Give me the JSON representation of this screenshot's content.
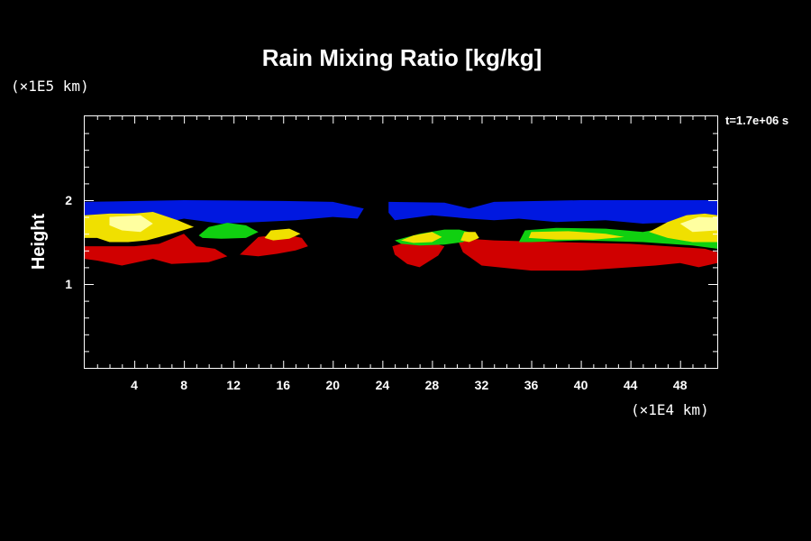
{
  "chart_data": {
    "type": "heatmap",
    "title": "Rain Mixing Ratio [kg/kg]",
    "ylabel": "Height",
    "x_unit": "(×1E4 km)",
    "y_unit": "(×1E5 km)",
    "time_label": "t=1.7e+06 s",
    "xlim": [
      0,
      51
    ],
    "ylim": [
      0,
      3
    ],
    "x_ticks": [
      4,
      8,
      12,
      16,
      20,
      24,
      28,
      32,
      36,
      40,
      44,
      48
    ],
    "y_ticks": [
      1,
      2
    ],
    "colors": {
      "blue": "#0018e0",
      "green": "#10d010",
      "yellow": "#f0e000",
      "light_yellow": "#ffffa0",
      "red": "#d00000",
      "dark_red": "#8a0000"
    },
    "regions": [
      {
        "name": "blue-band-left",
        "color": "blue",
        "points": [
          [
            0,
            1.98
          ],
          [
            8,
            2.0
          ],
          [
            16,
            1.99
          ],
          [
            20,
            1.98
          ],
          [
            22.5,
            1.9
          ],
          [
            22,
            1.78
          ],
          [
            20,
            1.8
          ],
          [
            17,
            1.76
          ],
          [
            14,
            1.74
          ],
          [
            11,
            1.72
          ],
          [
            8,
            1.78
          ],
          [
            6,
            1.72
          ],
          [
            3,
            1.78
          ],
          [
            0,
            1.76
          ]
        ]
      },
      {
        "name": "blue-band-right",
        "color": "blue",
        "points": [
          [
            24.5,
            1.98
          ],
          [
            29,
            1.97
          ],
          [
            31,
            1.9
          ],
          [
            33,
            1.98
          ],
          [
            40,
            2.0
          ],
          [
            51,
            2.0
          ],
          [
            51,
            1.65
          ],
          [
            48,
            1.74
          ],
          [
            45,
            1.72
          ],
          [
            42,
            1.76
          ],
          [
            38,
            1.74
          ],
          [
            35,
            1.78
          ],
          [
            33,
            1.76
          ],
          [
            31,
            1.78
          ],
          [
            28,
            1.82
          ],
          [
            25,
            1.76
          ],
          [
            24.5,
            1.85
          ]
        ]
      },
      {
        "name": "red-left",
        "color": "red",
        "points": [
          [
            0,
            1.45
          ],
          [
            4,
            1.45
          ],
          [
            6,
            1.48
          ],
          [
            8,
            1.6
          ],
          [
            9,
            1.45
          ],
          [
            10.5,
            1.42
          ],
          [
            11.5,
            1.33
          ],
          [
            10,
            1.26
          ],
          [
            7,
            1.24
          ],
          [
            5.5,
            1.3
          ],
          [
            3,
            1.22
          ],
          [
            1,
            1.28
          ],
          [
            0,
            1.3
          ]
        ]
      },
      {
        "name": "red-left-blob",
        "color": "red",
        "points": [
          [
            12.5,
            1.35
          ],
          [
            14,
            1.56
          ],
          [
            16,
            1.6
          ],
          [
            17.5,
            1.55
          ],
          [
            18,
            1.45
          ],
          [
            17,
            1.4
          ],
          [
            15.5,
            1.36
          ],
          [
            14,
            1.33
          ]
        ]
      },
      {
        "name": "red-center-left",
        "color": "red",
        "points": [
          [
            24.8,
            1.45
          ],
          [
            26,
            1.5
          ],
          [
            28,
            1.49
          ],
          [
            29,
            1.45
          ],
          [
            28.5,
            1.34
          ],
          [
            27,
            1.2
          ],
          [
            26,
            1.24
          ],
          [
            25,
            1.35
          ]
        ]
      },
      {
        "name": "red-right",
        "color": "red",
        "points": [
          [
            30,
            1.55
          ],
          [
            33,
            1.52
          ],
          [
            38,
            1.5
          ],
          [
            44,
            1.48
          ],
          [
            47,
            1.45
          ],
          [
            50,
            1.42
          ],
          [
            51,
            1.38
          ],
          [
            51,
            1.25
          ],
          [
            49.5,
            1.2
          ],
          [
            48,
            1.25
          ],
          [
            46,
            1.22
          ],
          [
            44,
            1.2
          ],
          [
            40,
            1.16
          ],
          [
            36,
            1.16
          ],
          [
            32,
            1.22
          ],
          [
            30.5,
            1.38
          ]
        ]
      },
      {
        "name": "green-left",
        "color": "green",
        "points": [
          [
            9.2,
            1.58
          ],
          [
            10,
            1.68
          ],
          [
            11.5,
            1.73
          ],
          [
            13,
            1.7
          ],
          [
            14,
            1.62
          ],
          [
            13,
            1.55
          ],
          [
            11,
            1.54
          ],
          [
            9.5,
            1.55
          ]
        ]
      },
      {
        "name": "green-center",
        "color": "green",
        "points": [
          [
            25,
            1.52
          ],
          [
            27,
            1.6
          ],
          [
            29,
            1.65
          ],
          [
            30.2,
            1.65
          ],
          [
            31.5,
            1.6
          ],
          [
            30.5,
            1.5
          ],
          [
            29,
            1.47
          ],
          [
            27,
            1.46
          ],
          [
            25.5,
            1.48
          ]
        ]
      },
      {
        "name": "green-right",
        "color": "green",
        "points": [
          [
            35,
            1.5
          ],
          [
            35.5,
            1.64
          ],
          [
            38,
            1.67
          ],
          [
            42,
            1.66
          ],
          [
            45,
            1.62
          ],
          [
            48,
            1.7
          ],
          [
            51,
            1.72
          ],
          [
            51,
            1.42
          ],
          [
            49,
            1.46
          ],
          [
            45,
            1.5
          ],
          [
            40,
            1.52
          ],
          [
            36,
            1.5
          ]
        ]
      },
      {
        "name": "yellow-left",
        "color": "yellow",
        "points": [
          [
            0,
            1.82
          ],
          [
            2,
            1.84
          ],
          [
            4,
            1.84
          ],
          [
            5.5,
            1.86
          ],
          [
            7.5,
            1.76
          ],
          [
            8.8,
            1.68
          ],
          [
            7,
            1.6
          ],
          [
            5,
            1.52
          ],
          [
            3.5,
            1.5
          ],
          [
            2,
            1.5
          ],
          [
            1,
            1.55
          ],
          [
            0,
            1.55
          ]
        ]
      },
      {
        "name": "yellow-blob-left",
        "color": "yellow",
        "points": [
          [
            14.5,
            1.55
          ],
          [
            15,
            1.64
          ],
          [
            16.5,
            1.66
          ],
          [
            17.4,
            1.6
          ],
          [
            16.5,
            1.54
          ],
          [
            15.2,
            1.52
          ]
        ]
      },
      {
        "name": "yellow-center",
        "color": "yellow",
        "points": [
          [
            25.5,
            1.52
          ],
          [
            26.5,
            1.58
          ],
          [
            28,
            1.62
          ],
          [
            28.8,
            1.56
          ],
          [
            28,
            1.5
          ],
          [
            26.5,
            1.49
          ]
        ]
      },
      {
        "name": "yellow-center-2",
        "color": "yellow",
        "points": [
          [
            30.3,
            1.52
          ],
          [
            30.6,
            1.62
          ],
          [
            31.5,
            1.62
          ],
          [
            31.8,
            1.55
          ],
          [
            31,
            1.5
          ]
        ]
      },
      {
        "name": "yellow-right",
        "color": "yellow",
        "points": [
          [
            35.8,
            1.55
          ],
          [
            36,
            1.62
          ],
          [
            39,
            1.63
          ],
          [
            42,
            1.6
          ],
          [
            43.5,
            1.56
          ],
          [
            41,
            1.53
          ],
          [
            38,
            1.53
          ]
        ]
      },
      {
        "name": "yellow-far-right",
        "color": "yellow",
        "points": [
          [
            45.5,
            1.62
          ],
          [
            47,
            1.74
          ],
          [
            48.5,
            1.82
          ],
          [
            50,
            1.84
          ],
          [
            51,
            1.82
          ],
          [
            51,
            1.5
          ],
          [
            49,
            1.5
          ],
          [
            47,
            1.55
          ]
        ]
      },
      {
        "name": "light-yellow-left",
        "color": "light_yellow",
        "points": [
          [
            2,
            1.8
          ],
          [
            4.5,
            1.82
          ],
          [
            5.5,
            1.72
          ],
          [
            4.5,
            1.62
          ],
          [
            3,
            1.64
          ],
          [
            2,
            1.7
          ]
        ]
      },
      {
        "name": "light-yellow-right",
        "color": "light_yellow",
        "points": [
          [
            48,
            1.72
          ],
          [
            49.5,
            1.8
          ],
          [
            51,
            1.79
          ],
          [
            51,
            1.64
          ],
          [
            49,
            1.62
          ]
        ]
      }
    ]
  }
}
